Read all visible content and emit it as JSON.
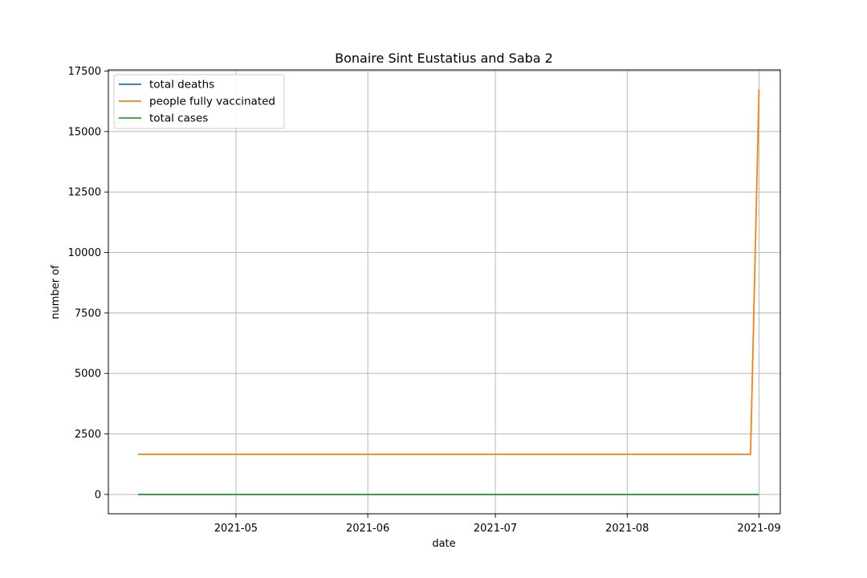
{
  "chart_data": {
    "type": "line",
    "title": "Bonaire Sint Eustatius and Saba 2",
    "xlabel": "date",
    "ylabel": "number of",
    "xlim": [
      "2021-04-01",
      "2021-09-06"
    ],
    "ylim": [
      -800,
      17550
    ],
    "x_ticks": [
      {
        "value": "2021-05-01",
        "label": "2021-05"
      },
      {
        "value": "2021-06-01",
        "label": "2021-06"
      },
      {
        "value": "2021-07-01",
        "label": "2021-07"
      },
      {
        "value": "2021-08-01",
        "label": "2021-08"
      },
      {
        "value": "2021-09-01",
        "label": "2021-09"
      }
    ],
    "y_ticks": [
      0,
      2500,
      5000,
      7500,
      10000,
      12500,
      15000,
      17500
    ],
    "grid": true,
    "legend_position": "top-left",
    "series": [
      {
        "name": "total deaths",
        "color": "#1f77b4",
        "points": [
          {
            "x": "2021-04-08",
            "y": 0
          },
          {
            "x": "2021-09-01",
            "y": 0
          }
        ]
      },
      {
        "name": "people fully vaccinated",
        "color": "#ff7f0e",
        "points": [
          {
            "x": "2021-04-08",
            "y": 1660
          },
          {
            "x": "2021-08-30",
            "y": 1660
          },
          {
            "x": "2021-09-01",
            "y": 16750
          }
        ]
      },
      {
        "name": "total cases",
        "color": "#2ca02c",
        "points": [
          {
            "x": "2021-04-08",
            "y": 0
          },
          {
            "x": "2021-09-01",
            "y": 0
          }
        ]
      }
    ]
  }
}
